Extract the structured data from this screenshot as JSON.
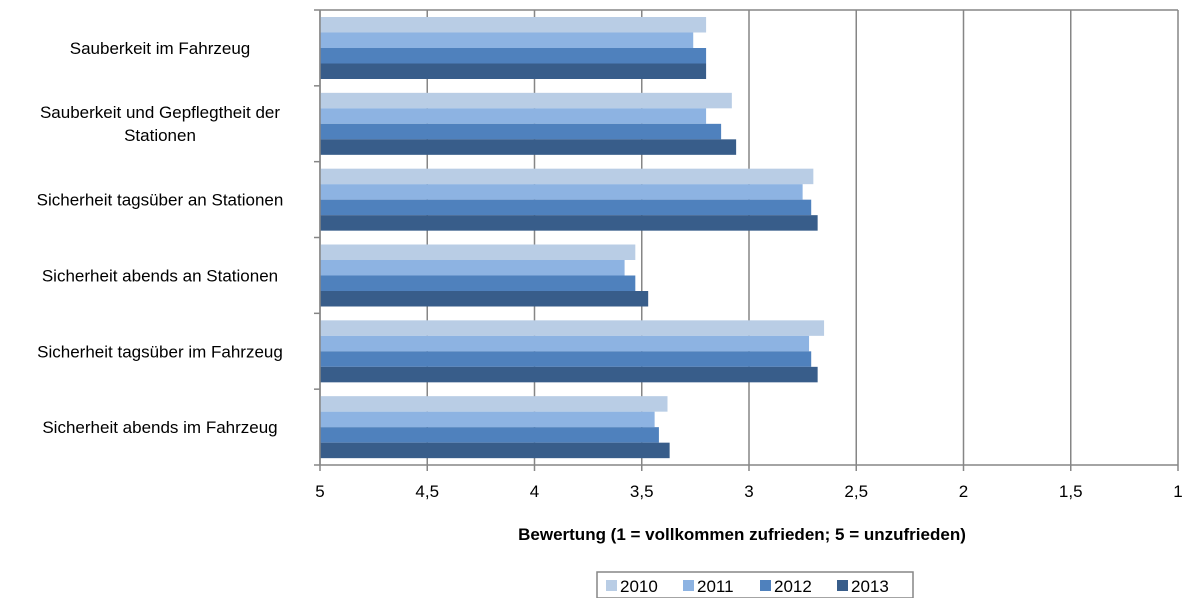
{
  "chart_data": {
    "type": "bar",
    "orientation": "horizontal",
    "categories": [
      "Sauberkeit im Fahrzeug",
      "Sauberkeit und Gepflegtheit der Stationen",
      "Sicherheit tagsüber an Stationen",
      "Sicherheit abends an Stationen",
      "Sicherheit tagsüber im Fahrzeug",
      "Sicherheit abends im Fahrzeug"
    ],
    "series": [
      {
        "name": "2010",
        "color": "#b9cde5",
        "values": [
          3.2,
          3.08,
          2.7,
          3.53,
          2.65,
          3.38
        ]
      },
      {
        "name": "2011",
        "color": "#8db3e2",
        "values": [
          3.26,
          3.2,
          2.75,
          3.58,
          2.72,
          3.44
        ]
      },
      {
        "name": "2012",
        "color": "#4f81bd",
        "values": [
          3.2,
          3.13,
          2.71,
          3.53,
          2.71,
          3.42
        ]
      },
      {
        "name": "2013",
        "color": "#385d8a",
        "values": [
          3.2,
          3.06,
          2.68,
          3.47,
          2.68,
          3.37
        ]
      }
    ],
    "xlim": [
      5,
      1
    ],
    "xticks": [
      "5",
      "4,5",
      "4",
      "3,5",
      "3",
      "2,5",
      "2",
      "1,5",
      "1"
    ],
    "xlabel": "Bewertung (1 = vollkommen zufrieden; 5 = unzufrieden)",
    "ylabel": "",
    "title": "",
    "grid": true,
    "legend_position": "bottom"
  }
}
